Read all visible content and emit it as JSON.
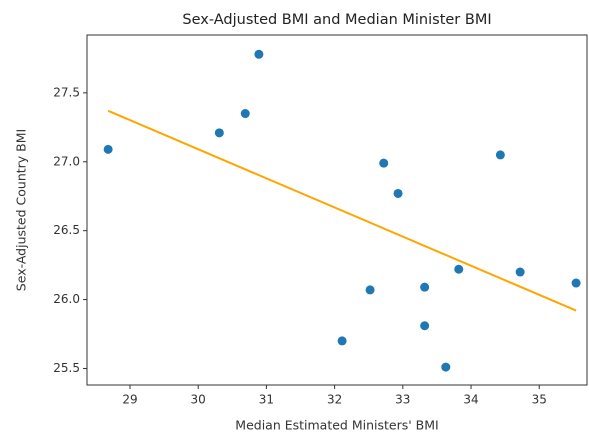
{
  "chart_data": {
    "type": "scatter",
    "title": "Sex-Adjusted BMI and Median Minister BMI",
    "x_label": "Median Estimated Ministers' BMI",
    "y_label": "Sex-Adjusted Country BMI",
    "series": [
      {
        "type": "scatter",
        "color": "#1f77b4",
        "x": [
          28.68,
          30.31,
          30.69,
          30.89,
          32.11,
          32.52,
          32.72,
          32.93,
          33.32,
          33.32,
          33.63,
          33.82,
          34.43,
          34.72,
          35.54
        ],
        "values": [
          27.09,
          27.21,
          27.35,
          27.78,
          25.7,
          26.07,
          26.99,
          26.77,
          26.09,
          25.81,
          25.51,
          26.22,
          27.05,
          26.2,
          26.12
        ]
      },
      {
        "type": "line",
        "color": "#ffa500",
        "x": [
          28.68,
          35.54
        ],
        "values": [
          27.37,
          25.92
        ]
      }
    ],
    "xlim": [
      28.37,
      35.7
    ],
    "xticks": [
      29,
      30,
      31,
      32,
      33,
      34,
      35
    ],
    "ylim": [
      25.38,
      27.92
    ],
    "yticks": [
      {
        "value": 25.5,
        "label": "25.5"
      },
      {
        "value": 26,
        "label": "26.0"
      },
      {
        "value": 26.5,
        "label": "26.5"
      },
      {
        "value": 27,
        "label": "27.0"
      },
      {
        "value": 27.5,
        "label": "27.5"
      }
    ]
  }
}
